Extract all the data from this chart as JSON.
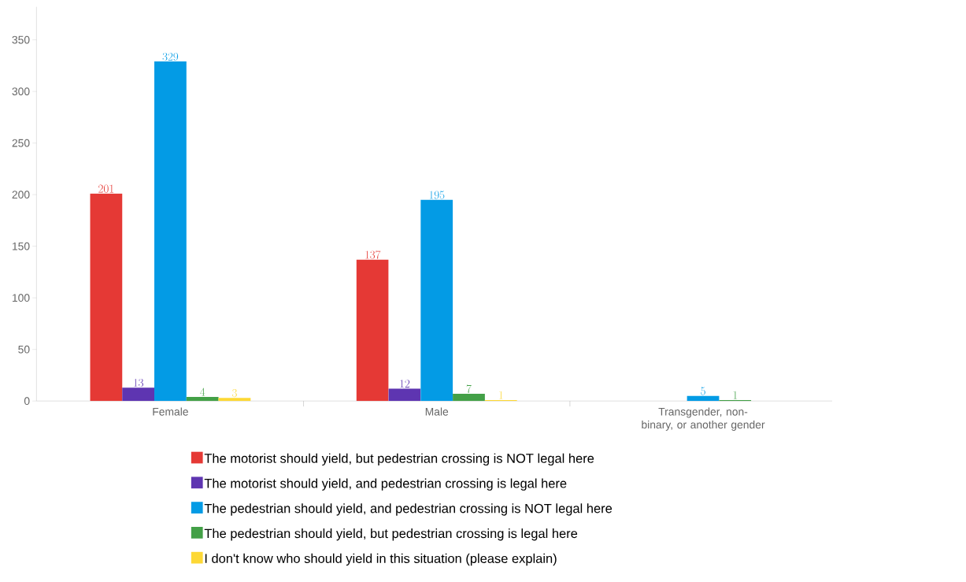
{
  "chart_data": {
    "type": "bar",
    "categories": [
      "Female",
      "Male",
      "Transgender, non-binary, or another gender"
    ],
    "series": [
      {
        "name": "The motorist should yield, but pedestrian crossing is NOT legal here",
        "color": "#e53935",
        "values": [
          201,
          137,
          null
        ]
      },
      {
        "name": "The motorist should yield, and pedestrian crossing is legal here",
        "color": "#5e35b1",
        "values": [
          13,
          12,
          null
        ]
      },
      {
        "name": "The pedestrian should yield, and pedestrian crossing is NOT legal here",
        "color": "#039be5",
        "values": [
          329,
          195,
          5
        ]
      },
      {
        "name": "The pedestrian should yield, but pedestrian crossing is legal here",
        "color": "#43a047",
        "values": [
          4,
          7,
          1
        ]
      },
      {
        "name": "I don't know who should yield in this situation (please explain)",
        "color": "#fdd835",
        "values": [
          3,
          1,
          null
        ]
      }
    ],
    "ylim": [
      0,
      382
    ],
    "yticks": [
      0,
      50,
      100,
      150,
      200,
      250,
      300,
      350
    ],
    "data_labels": true,
    "grid": false,
    "legend": "bottom"
  }
}
